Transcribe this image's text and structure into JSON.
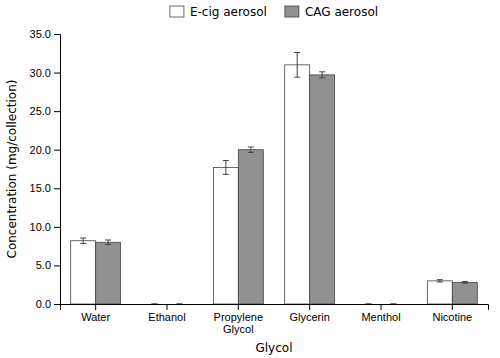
{
  "chart_data": {
    "type": "bar",
    "xlabel": "Glycol",
    "ylabel": "Concentration (mg/collection)",
    "categories": [
      "Water",
      "Ethanol",
      "Propylene\nGlycol",
      "Glycerin",
      "Menthol",
      "Nicotine"
    ],
    "series": [
      {
        "name": "E-cig aerosol",
        "color": "#ffffff",
        "values": [
          8.2,
          0.0,
          17.7,
          31.0,
          0.0,
          3.0
        ],
        "errors": [
          0.35,
          0.0,
          0.9,
          1.6,
          0.0,
          0.15
        ]
      },
      {
        "name": "CAG aerosol",
        "color": "#919191",
        "values": [
          8.0,
          0.0,
          20.0,
          29.7,
          0.0,
          2.8
        ],
        "errors": [
          0.3,
          0.0,
          0.35,
          0.4,
          0.0,
          0.12
        ]
      }
    ],
    "ylim": [
      0.0,
      35.0
    ],
    "yticks": [
      {
        "value": 0.0,
        "label": "0.0"
      },
      {
        "value": 5.0,
        "label": "5.0"
      },
      {
        "value": 10.0,
        "label": "10.0"
      },
      {
        "value": 15.0,
        "label": "15.0"
      },
      {
        "value": 20.0,
        "label": "20.0"
      },
      {
        "value": 25.0,
        "label": "25.0"
      },
      {
        "value": 30.0,
        "label": "30.0"
      },
      {
        "value": 35.0,
        "label": "35.0"
      }
    ],
    "grid": false,
    "legend": "top"
  }
}
